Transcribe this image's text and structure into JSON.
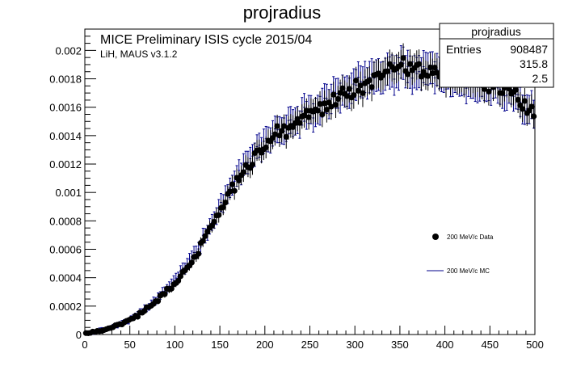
{
  "chart_data": {
    "type": "scatter",
    "title": "projradius",
    "xlabel": "",
    "ylabel": "",
    "xlim": [
      0,
      500
    ],
    "ylim": [
      0,
      0.00215
    ],
    "x_ticks": [
      0,
      50,
      100,
      150,
      200,
      250,
      300,
      350,
      400,
      450,
      500
    ],
    "y_ticks": [
      0,
      0.0002,
      0.0004,
      0.0006,
      0.0008,
      0.001,
      0.0012,
      0.0014,
      0.0016,
      0.0018,
      0.002
    ],
    "y_tick_labels": [
      "0",
      "0.0002",
      "0.0004",
      "0.0006",
      "0.0008",
      "0.001",
      "0.0012",
      "0.0014",
      "0.0016",
      "0.0018",
      "0.002"
    ],
    "annotations": [
      "MICE Preliminary ISIS cycle 2015/04",
      "LiH, MAUS v3.1.2"
    ],
    "stats_box": {
      "title": "projradius",
      "rows": [
        {
          "label": "Entries",
          "value": "908487"
        },
        {
          "label": "",
          "value": "315.8"
        },
        {
          "label": "",
          "value": "2.5"
        }
      ]
    },
    "legend": {
      "position": "right",
      "entries": [
        "200 MeV/c Data",
        "200 MeV/c MC"
      ]
    },
    "series": [
      {
        "name": "200 MeV/c Data",
        "style": "points",
        "color": "#000000",
        "bin_width": 2.5,
        "curve_x": [
          0,
          25,
          50,
          75,
          100,
          125,
          150,
          175,
          200,
          225,
          250,
          275,
          300,
          325,
          350,
          375,
          400,
          425,
          450,
          475,
          500
        ],
        "curve_y": [
          0,
          4e-05,
          0.0001,
          0.00021,
          0.00036,
          0.00057,
          0.00087,
          0.00115,
          0.00133,
          0.00146,
          0.00155,
          0.00164,
          0.00173,
          0.00182,
          0.00187,
          0.00186,
          0.00183,
          0.00179,
          0.00176,
          0.00172,
          0.00153
        ]
      },
      {
        "name": "200 MeV/c MC",
        "style": "errorbars",
        "color": "#00008b",
        "bin_width": 2.5,
        "curve_x": [
          0,
          25,
          50,
          75,
          100,
          125,
          150,
          175,
          200,
          225,
          250,
          275,
          300,
          325,
          350,
          375,
          400,
          425,
          450,
          475,
          500
        ],
        "curve_y": [
          0,
          4e-05,
          0.0001,
          0.00022,
          0.00038,
          0.0006,
          0.0009,
          0.00118,
          0.00136,
          0.00149,
          0.00158,
          0.00167,
          0.00175,
          0.00182,
          0.00186,
          0.00184,
          0.00181,
          0.00177,
          0.00174,
          0.0017,
          0.00155
        ]
      }
    ]
  }
}
